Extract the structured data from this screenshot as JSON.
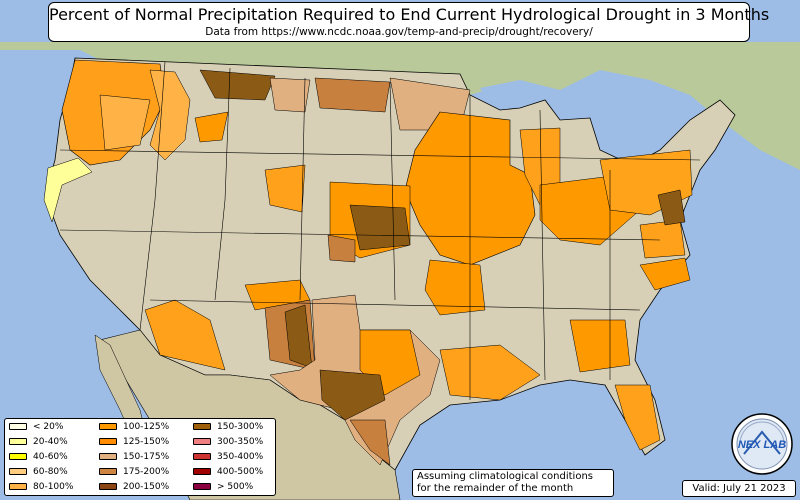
{
  "title": "Percent of Normal Precipitation Required to End Current Hydrological Drought in 3 Months",
  "subtitle": "Data from https://www.ncdc.noaa.gov/temp-and-precip/drought/recovery/",
  "legend": [
    {
      "label": "< 20%",
      "color": "#ffffe6"
    },
    {
      "label": "20-40%",
      "color": "#ffff99"
    },
    {
      "label": "40-60%",
      "color": "#ffff00"
    },
    {
      "label": "60-80%",
      "color": "#ffcc80"
    },
    {
      "label": "80-100%",
      "color": "#ffb347"
    },
    {
      "label": "100-125%",
      "color": "#ff9900"
    },
    {
      "label": "125-150%",
      "color": "#ff8c00"
    },
    {
      "label": "150-175%",
      "color": "#e0b080"
    },
    {
      "label": "175-200%",
      "color": "#cd853f"
    },
    {
      "label": "200-150%",
      "color": "#8b4513"
    },
    {
      "label": "150-300%",
      "color": "#a0600a"
    },
    {
      "label": "300-350%",
      "color": "#f08080"
    },
    {
      "label": "350-400%",
      "color": "#cd3333"
    },
    {
      "label": "400-500%",
      "color": "#a00000"
    },
    {
      "label": "> 500%",
      "color": "#8b0040"
    }
  ],
  "note_line1": "Assuming climatological conditions",
  "note_line2": "for the remainder of the month",
  "valid": "Valid: July 21 2023",
  "logo_text": "NEX LAB",
  "colors": {
    "ocean": "#9dbde6",
    "land": "#d7cfb4",
    "canada": "#c9d2a8",
    "mexico": "#d4c9a6"
  }
}
